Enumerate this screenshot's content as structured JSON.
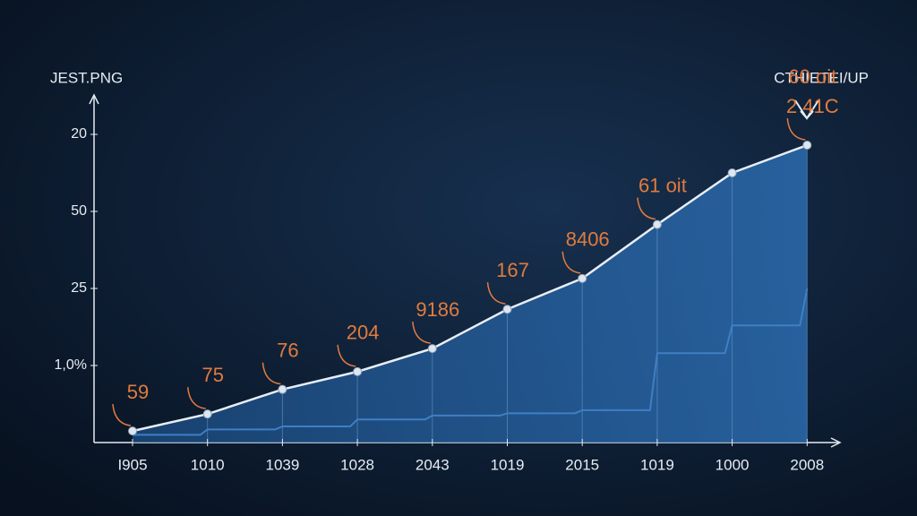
{
  "chart_data": {
    "type": "area",
    "title": "JEST.PNG",
    "subtitle": "CTHIETEI/UP",
    "categories": [
      "I905",
      "1010",
      "1039",
      "1028",
      "2043",
      "1019",
      "2015",
      "1019",
      "1000",
      "2008"
    ],
    "series": [
      {
        "color": "#e8eef6",
        "values": [
          0.15,
          0.37,
          0.69,
          0.92,
          1.22,
          1.73,
          2.13,
          2.83,
          3.5,
          3.86
        ]
      },
      {
        "color": "#3f7fc4",
        "values": [
          0.1,
          0.17,
          0.21,
          0.3,
          0.35,
          0.38,
          0.42,
          1.16,
          1.52,
          2.0
        ]
      }
    ],
    "annotations": [
      [
        "59"
      ],
      [
        "75"
      ],
      [
        "76"
      ],
      [
        "204"
      ],
      [
        "9186"
      ],
      [
        "167"
      ],
      [
        "8406"
      ],
      [
        "61 oit"
      ],
      [],
      [
        "60 oit",
        "2 41C"
      ]
    ],
    "annotation_color": "#e27b3e",
    "ylim": [
      0,
      4.5
    ],
    "yticks": [
      {
        "value": 1,
        "label": "1,0%"
      },
      {
        "value": 2,
        "label": "25"
      },
      {
        "value": 3,
        "label": "50"
      },
      {
        "value": 4,
        "label": "20"
      }
    ]
  }
}
